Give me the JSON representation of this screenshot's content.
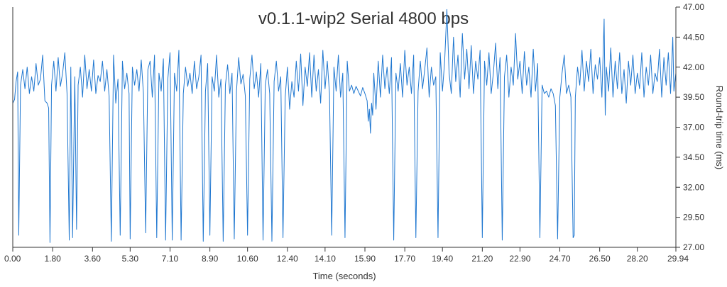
{
  "chart_data": {
    "type": "line",
    "title": "v0.1.1-wip2 Serial 4800 bps",
    "xlabel": "Time (seconds)",
    "ylabel": "Round-trip time (ms)",
    "xlim": [
      0,
      29.94
    ],
    "ylim": [
      27.0,
      47.0
    ],
    "y_axis_position": "right",
    "grid": false,
    "legend": "none",
    "x_ticks": [
      "0.00",
      "1.80",
      "3.60",
      "5.30",
      "7.10",
      "8.90",
      "10.60",
      "12.40",
      "14.10",
      "15.90",
      "17.70",
      "19.40",
      "21.20",
      "22.90",
      "24.70",
      "26.50",
      "28.20",
      "29.94"
    ],
    "y_ticks": [
      "27.00",
      "29.50",
      "32.00",
      "34.50",
      "37.00",
      "39.50",
      "42.00",
      "44.50",
      "47.00"
    ],
    "series_color": "#1f77d0",
    "series": [
      {
        "values": [
          [
            0.0,
            39.0
          ],
          [
            0.08,
            39.3
          ],
          [
            0.15,
            40.8
          ],
          [
            0.22,
            41.6
          ],
          [
            0.27,
            28.0
          ],
          [
            0.35,
            40.5
          ],
          [
            0.45,
            41.8
          ],
          [
            0.55,
            40.2
          ],
          [
            0.65,
            42.0
          ],
          [
            0.75,
            39.8
          ],
          [
            0.85,
            41.2
          ],
          [
            0.95,
            40.0
          ],
          [
            1.05,
            42.3
          ],
          [
            1.15,
            40.5
          ],
          [
            1.25,
            41.0
          ],
          [
            1.35,
            43.0
          ],
          [
            1.45,
            39.2
          ],
          [
            1.55,
            39.0
          ],
          [
            1.62,
            38.6
          ],
          [
            1.68,
            27.4
          ],
          [
            1.75,
            40.5
          ],
          [
            1.85,
            42.5
          ],
          [
            1.95,
            40.0
          ],
          [
            2.05,
            42.8
          ],
          [
            2.15,
            40.4
          ],
          [
            2.25,
            41.5
          ],
          [
            2.35,
            43.2
          ],
          [
            2.45,
            39.8
          ],
          [
            2.55,
            27.6
          ],
          [
            2.62,
            42.0
          ],
          [
            2.7,
            27.8
          ],
          [
            2.8,
            41.2
          ],
          [
            2.88,
            28.5
          ],
          [
            2.95,
            40.5
          ],
          [
            3.05,
            42.0
          ],
          [
            3.15,
            39.5
          ],
          [
            3.25,
            43.0
          ],
          [
            3.35,
            40.2
          ],
          [
            3.45,
            41.8
          ],
          [
            3.55,
            40.0
          ],
          [
            3.65,
            42.6
          ],
          [
            3.75,
            39.8
          ],
          [
            3.85,
            41.3
          ],
          [
            3.95,
            40.8
          ],
          [
            4.05,
            42.5
          ],
          [
            4.15,
            40.0
          ],
          [
            4.25,
            41.8
          ],
          [
            4.35,
            39.6
          ],
          [
            4.45,
            27.5
          ],
          [
            4.55,
            43.0
          ],
          [
            4.65,
            39.0
          ],
          [
            4.75,
            41.0
          ],
          [
            4.85,
            28.0
          ],
          [
            4.95,
            42.5
          ],
          [
            5.05,
            40.2
          ],
          [
            5.15,
            41.5
          ],
          [
            5.25,
            39.8
          ],
          [
            5.3,
            27.7
          ],
          [
            5.4,
            42.0
          ],
          [
            5.5,
            40.5
          ],
          [
            5.6,
            41.8
          ],
          [
            5.7,
            40.0
          ],
          [
            5.8,
            42.6
          ],
          [
            5.9,
            39.8
          ],
          [
            6.0,
            28.2
          ],
          [
            6.1,
            41.8
          ],
          [
            6.2,
            42.5
          ],
          [
            6.3,
            39.5
          ],
          [
            6.4,
            43.0
          ],
          [
            6.5,
            27.8
          ],
          [
            6.6,
            41.5
          ],
          [
            6.7,
            40.0
          ],
          [
            6.8,
            42.7
          ],
          [
            6.9,
            27.6
          ],
          [
            7.0,
            41.0
          ],
          [
            7.1,
            43.2
          ],
          [
            7.2,
            27.6
          ],
          [
            7.3,
            41.5
          ],
          [
            7.4,
            40.0
          ],
          [
            7.5,
            43.4
          ],
          [
            7.6,
            27.6
          ],
          [
            7.7,
            39.8
          ],
          [
            7.8,
            42.0
          ],
          [
            7.9,
            40.4
          ],
          [
            8.0,
            41.5
          ],
          [
            8.1,
            39.8
          ],
          [
            8.2,
            42.5
          ],
          [
            8.3,
            40.2
          ],
          [
            8.4,
            41.2
          ],
          [
            8.5,
            43.0
          ],
          [
            8.6,
            27.5
          ],
          [
            8.7,
            40.0
          ],
          [
            8.8,
            42.3
          ],
          [
            8.9,
            28.0
          ],
          [
            9.0,
            41.2
          ],
          [
            9.1,
            40.0
          ],
          [
            9.2,
            43.0
          ],
          [
            9.3,
            39.5
          ],
          [
            9.4,
            41.0
          ],
          [
            9.5,
            27.5
          ],
          [
            9.6,
            40.5
          ],
          [
            9.7,
            42.2
          ],
          [
            9.8,
            39.8
          ],
          [
            9.9,
            41.5
          ],
          [
            10.0,
            27.7
          ],
          [
            10.1,
            40.0
          ],
          [
            10.2,
            42.8
          ],
          [
            10.3,
            40.6
          ],
          [
            10.4,
            41.4
          ],
          [
            10.5,
            39.6
          ],
          [
            10.6,
            28.0
          ],
          [
            10.7,
            41.0
          ],
          [
            10.8,
            43.0
          ],
          [
            10.9,
            40.2
          ],
          [
            11.0,
            41.6
          ],
          [
            11.1,
            39.5
          ],
          [
            11.2,
            42.3
          ],
          [
            11.3,
            27.6
          ],
          [
            11.4,
            40.5
          ],
          [
            11.5,
            41.8
          ],
          [
            11.6,
            39.8
          ],
          [
            11.7,
            27.5
          ],
          [
            11.8,
            40.8
          ],
          [
            11.9,
            42.5
          ],
          [
            12.0,
            40.0
          ],
          [
            12.1,
            41.2
          ],
          [
            12.2,
            27.8
          ],
          [
            12.3,
            39.5
          ],
          [
            12.4,
            42.0
          ],
          [
            12.5,
            38.5
          ],
          [
            12.6,
            40.8
          ],
          [
            12.7,
            39.5
          ],
          [
            12.8,
            42.5
          ],
          [
            12.9,
            40.0
          ],
          [
            13.0,
            43.1
          ],
          [
            13.1,
            38.8
          ],
          [
            13.2,
            42.0
          ],
          [
            13.3,
            40.4
          ],
          [
            13.4,
            43.2
          ],
          [
            13.5,
            39.5
          ],
          [
            13.6,
            43.0
          ],
          [
            13.7,
            40.0
          ],
          [
            13.8,
            41.8
          ],
          [
            13.9,
            39.0
          ],
          [
            14.0,
            43.4
          ],
          [
            14.1,
            40.2
          ],
          [
            14.2,
            42.5
          ],
          [
            14.3,
            39.8
          ],
          [
            14.4,
            28.0
          ],
          [
            14.5,
            42.0
          ],
          [
            14.6,
            40.0
          ],
          [
            14.7,
            43.0
          ],
          [
            14.8,
            39.5
          ],
          [
            14.9,
            41.5
          ],
          [
            15.0,
            27.8
          ],
          [
            15.1,
            42.5
          ],
          [
            15.2,
            40.0
          ],
          [
            15.3,
            40.5
          ],
          [
            15.4,
            39.8
          ],
          [
            15.5,
            40.4
          ],
          [
            15.6,
            40.0
          ],
          [
            15.7,
            39.6
          ],
          [
            15.8,
            40.3
          ],
          [
            15.9,
            39.8
          ],
          [
            16.0,
            39.2
          ],
          [
            16.05,
            37.5
          ],
          [
            16.1,
            38.5
          ],
          [
            16.15,
            36.5
          ],
          [
            16.2,
            39.0
          ],
          [
            16.25,
            38.0
          ],
          [
            16.3,
            41.5
          ],
          [
            16.4,
            38.5
          ],
          [
            16.5,
            42.5
          ],
          [
            16.6,
            39.5
          ],
          [
            16.7,
            43.0
          ],
          [
            16.8,
            40.2
          ],
          [
            16.9,
            42.0
          ],
          [
            17.0,
            39.8
          ],
          [
            17.1,
            42.8
          ],
          [
            17.2,
            27.6
          ],
          [
            17.3,
            41.5
          ],
          [
            17.4,
            40.0
          ],
          [
            17.5,
            42.3
          ],
          [
            17.6,
            39.5
          ],
          [
            17.7,
            43.4
          ],
          [
            17.8,
            40.5
          ],
          [
            17.9,
            42.0
          ],
          [
            18.0,
            39.8
          ],
          [
            18.1,
            43.0
          ],
          [
            18.2,
            27.8
          ],
          [
            18.3,
            40.0
          ],
          [
            18.4,
            42.5
          ],
          [
            18.5,
            40.2
          ],
          [
            18.6,
            41.8
          ],
          [
            18.7,
            43.6
          ],
          [
            18.8,
            39.5
          ],
          [
            18.9,
            42.0
          ],
          [
            19.0,
            40.5
          ],
          [
            19.1,
            41.2
          ],
          [
            19.2,
            27.8
          ],
          [
            19.3,
            43.2
          ],
          [
            19.4,
            40.0
          ],
          [
            19.5,
            42.5
          ],
          [
            19.6,
            46.8
          ],
          [
            19.7,
            41.5
          ],
          [
            19.8,
            39.8
          ],
          [
            19.9,
            44.5
          ],
          [
            20.0,
            40.8
          ],
          [
            20.1,
            43.0
          ],
          [
            20.2,
            39.5
          ],
          [
            20.3,
            44.8
          ],
          [
            20.4,
            41.0
          ],
          [
            20.5,
            43.5
          ],
          [
            20.6,
            40.2
          ],
          [
            20.7,
            43.8
          ],
          [
            20.8,
            39.8
          ],
          [
            20.9,
            42.5
          ],
          [
            21.0,
            41.0
          ],
          [
            21.1,
            43.4
          ],
          [
            21.2,
            27.8
          ],
          [
            21.3,
            42.5
          ],
          [
            21.4,
            40.5
          ],
          [
            21.5,
            43.2
          ],
          [
            21.6,
            39.8
          ],
          [
            21.7,
            41.5
          ],
          [
            21.8,
            44.0
          ],
          [
            21.9,
            40.2
          ],
          [
            22.0,
            42.8
          ],
          [
            22.1,
            27.6
          ],
          [
            22.2,
            41.2
          ],
          [
            22.3,
            43.0
          ],
          [
            22.4,
            39.5
          ],
          [
            22.5,
            42.0
          ],
          [
            22.6,
            40.5
          ],
          [
            22.7,
            44.8
          ],
          [
            22.8,
            41.0
          ],
          [
            22.9,
            42.5
          ],
          [
            23.0,
            39.8
          ],
          [
            23.1,
            43.3
          ],
          [
            23.2,
            40.5
          ],
          [
            23.3,
            42.0
          ],
          [
            23.4,
            39.5
          ],
          [
            23.5,
            43.5
          ],
          [
            23.6,
            40.0
          ],
          [
            23.7,
            42.3
          ],
          [
            23.8,
            27.8
          ],
          [
            23.9,
            40.5
          ],
          [
            24.0,
            39.8
          ],
          [
            24.1,
            40.0
          ],
          [
            24.2,
            39.5
          ],
          [
            24.3,
            40.2
          ],
          [
            24.4,
            39.8
          ],
          [
            24.5,
            38.8
          ],
          [
            24.6,
            27.7
          ],
          [
            24.7,
            39.5
          ],
          [
            24.8,
            41.5
          ],
          [
            24.9,
            43.0
          ],
          [
            25.0,
            39.8
          ],
          [
            25.1,
            40.5
          ],
          [
            25.2,
            39.5
          ],
          [
            25.3,
            27.8
          ],
          [
            25.35,
            28.0
          ],
          [
            25.4,
            39.5
          ],
          [
            25.5,
            42.0
          ],
          [
            25.6,
            40.5
          ],
          [
            25.7,
            43.4
          ],
          [
            25.8,
            40.0
          ],
          [
            25.9,
            42.5
          ],
          [
            26.0,
            40.8
          ],
          [
            26.1,
            43.5
          ],
          [
            26.2,
            39.8
          ],
          [
            26.3,
            42.2
          ],
          [
            26.4,
            41.0
          ],
          [
            26.5,
            42.8
          ],
          [
            26.6,
            39.5
          ],
          [
            26.7,
            46.0
          ],
          [
            26.75,
            38.0
          ],
          [
            26.8,
            42.0
          ],
          [
            26.9,
            40.0
          ],
          [
            27.0,
            43.6
          ],
          [
            27.1,
            39.5
          ],
          [
            27.2,
            42.5
          ],
          [
            27.3,
            40.2
          ],
          [
            27.4,
            43.2
          ],
          [
            27.5,
            39.8
          ],
          [
            27.6,
            41.8
          ],
          [
            27.7,
            39.0
          ],
          [
            27.8,
            42.5
          ],
          [
            27.9,
            40.5
          ],
          [
            28.0,
            43.0
          ],
          [
            28.1,
            39.8
          ],
          [
            28.2,
            41.5
          ],
          [
            28.3,
            40.2
          ],
          [
            28.4,
            43.2
          ],
          [
            28.5,
            39.5
          ],
          [
            28.6,
            42.0
          ],
          [
            28.7,
            40.5
          ],
          [
            28.8,
            43.0
          ],
          [
            28.9,
            39.8
          ],
          [
            29.0,
            41.5
          ],
          [
            29.1,
            40.8
          ],
          [
            29.2,
            43.5
          ],
          [
            29.3,
            39.5
          ],
          [
            29.4,
            42.8
          ],
          [
            29.5,
            40.5
          ],
          [
            29.6,
            43.2
          ],
          [
            29.7,
            39.8
          ],
          [
            29.8,
            44.5
          ],
          [
            29.85,
            40.0
          ],
          [
            29.94,
            41.5
          ]
        ]
      }
    ]
  }
}
